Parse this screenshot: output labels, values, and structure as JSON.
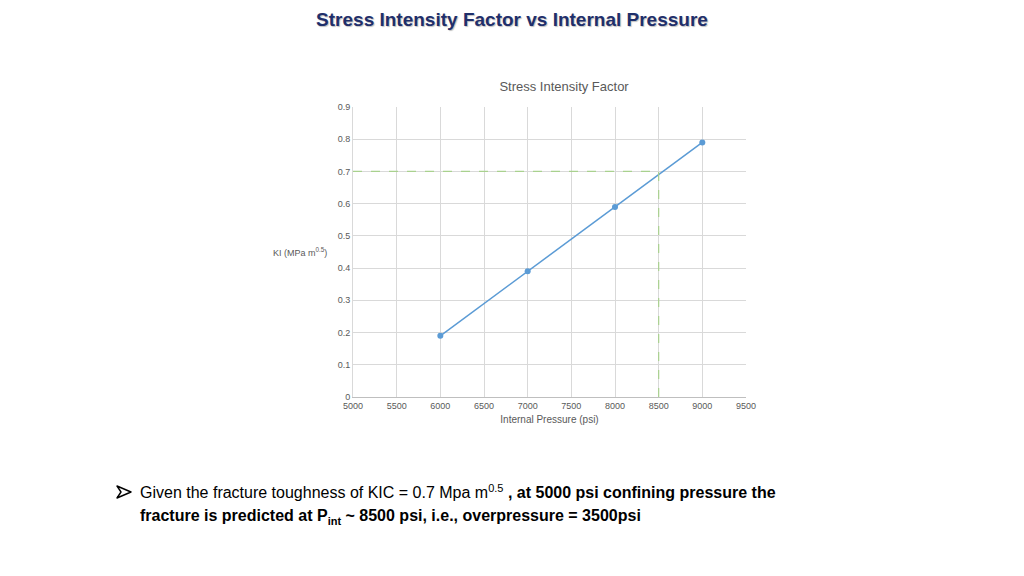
{
  "header": {
    "title": "Stress Intensity Factor vs Internal Pressure"
  },
  "chart_data": {
    "type": "line",
    "title": "Stress Intensity Factor",
    "x": [
      6000,
      7000,
      8000,
      9000
    ],
    "values": [
      0.19,
      0.39,
      0.59,
      0.79
    ],
    "color": "#5b9bd5",
    "marker": "circle",
    "xlabel": "Internal Pressure (psi)",
    "ylabel": [
      "KI (MPa m",
      "0.5",
      ")"
    ],
    "xlim": [
      5000,
      9500
    ],
    "xticks": [
      5000,
      5500,
      6000,
      6500,
      7000,
      7500,
      8000,
      8500,
      9000,
      9500
    ],
    "ylim": [
      0,
      0.9
    ],
    "yticks": [
      0,
      0.1,
      0.2,
      0.3,
      0.4,
      0.5,
      0.6,
      0.7,
      0.8,
      0.9
    ],
    "grid": true,
    "guide": {
      "x": 8500,
      "y": 0.7,
      "color": "#a9d18e",
      "line_style": "dashed"
    }
  },
  "note": [
    "Given the fracture toughness of KIC = 0.7 Mpa m",
    "0.5",
    " , at 5000 psi confining pressure the fracture is predicted at P",
    "int",
    " ~ 8500 psi, i.e., overpressure = 3500psi"
  ]
}
